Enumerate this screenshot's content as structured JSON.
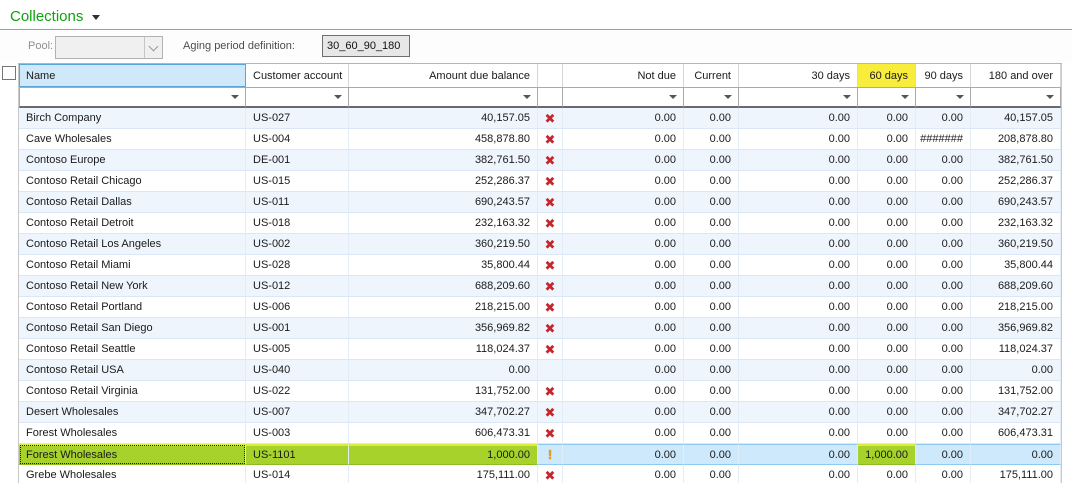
{
  "title": {
    "label": "Collections"
  },
  "toolbar": {
    "pool_label": "Pool:",
    "pool_value": "",
    "aging_label": "Aging period definition:",
    "aging_value": "30_60_90_180"
  },
  "colors": {
    "title_green": "#10a010",
    "selected_green": "#a6d22b",
    "selected_blue": "#cde9fb",
    "header_highlight_yellow": "#f8ec3d",
    "name_header_blue": "#cfe8fa",
    "alt_row_blue": "#eff5fc",
    "stop_icon_red": "#c5262c",
    "warning_icon_orange": "#ef9c0d"
  },
  "table": {
    "columns": [
      {
        "key": "name",
        "label": "Name",
        "align": "left"
      },
      {
        "key": "account",
        "label": "Customer account",
        "align": "left"
      },
      {
        "key": "amount",
        "label": "Amount due balance",
        "align": "right"
      },
      {
        "key": "icon",
        "label": "",
        "align": "center"
      },
      {
        "key": "not_due",
        "label": "Not due",
        "align": "right"
      },
      {
        "key": "current",
        "label": "Current",
        "align": "right"
      },
      {
        "key": "d30",
        "label": "30 days",
        "align": "right"
      },
      {
        "key": "d60",
        "label": "60 days",
        "align": "right",
        "highlight": true
      },
      {
        "key": "d90",
        "label": "90 days",
        "align": "right"
      },
      {
        "key": "d180",
        "label": "180 and over",
        "align": "right"
      }
    ],
    "rows": [
      {
        "name": "Birch Company",
        "account": "US-027",
        "amount": "40,157.05",
        "icon": "stop-icon",
        "not_due": "0.00",
        "current": "0.00",
        "d30": "0.00",
        "d60": "0.00",
        "d90": "0.00",
        "d180": "40,157.05"
      },
      {
        "name": "Cave Wholesales",
        "account": "US-004",
        "amount": "458,878.80",
        "icon": "stop-icon",
        "not_due": "0.00",
        "current": "0.00",
        "d30": "0.00",
        "d60": "0.00",
        "d90": "#######",
        "d180": "208,878.80"
      },
      {
        "name": "Contoso Europe",
        "account": "DE-001",
        "amount": "382,761.50",
        "icon": "stop-icon",
        "not_due": "0.00",
        "current": "0.00",
        "d30": "0.00",
        "d60": "0.00",
        "d90": "0.00",
        "d180": "382,761.50"
      },
      {
        "name": "Contoso Retail Chicago",
        "account": "US-015",
        "amount": "252,286.37",
        "icon": "stop-icon",
        "not_due": "0.00",
        "current": "0.00",
        "d30": "0.00",
        "d60": "0.00",
        "d90": "0.00",
        "d180": "252,286.37"
      },
      {
        "name": "Contoso Retail Dallas",
        "account": "US-011",
        "amount": "690,243.57",
        "icon": "stop-icon",
        "not_due": "0.00",
        "current": "0.00",
        "d30": "0.00",
        "d60": "0.00",
        "d90": "0.00",
        "d180": "690,243.57"
      },
      {
        "name": "Contoso Retail Detroit",
        "account": "US-018",
        "amount": "232,163.32",
        "icon": "stop-icon",
        "not_due": "0.00",
        "current": "0.00",
        "d30": "0.00",
        "d60": "0.00",
        "d90": "0.00",
        "d180": "232,163.32"
      },
      {
        "name": "Contoso Retail Los Angeles",
        "account": "US-002",
        "amount": "360,219.50",
        "icon": "stop-icon",
        "not_due": "0.00",
        "current": "0.00",
        "d30": "0.00",
        "d60": "0.00",
        "d90": "0.00",
        "d180": "360,219.50"
      },
      {
        "name": "Contoso Retail Miami",
        "account": "US-028",
        "amount": "35,800.44",
        "icon": "stop-icon",
        "not_due": "0.00",
        "current": "0.00",
        "d30": "0.00",
        "d60": "0.00",
        "d90": "0.00",
        "d180": "35,800.44"
      },
      {
        "name": "Contoso Retail New York",
        "account": "US-012",
        "amount": "688,209.60",
        "icon": "stop-icon",
        "not_due": "0.00",
        "current": "0.00",
        "d30": "0.00",
        "d60": "0.00",
        "d90": "0.00",
        "d180": "688,209.60"
      },
      {
        "name": "Contoso Retail Portland",
        "account": "US-006",
        "amount": "218,215.00",
        "icon": "stop-icon",
        "not_due": "0.00",
        "current": "0.00",
        "d30": "0.00",
        "d60": "0.00",
        "d90": "0.00",
        "d180": "218,215.00"
      },
      {
        "name": "Contoso Retail San Diego",
        "account": "US-001",
        "amount": "356,969.82",
        "icon": "stop-icon",
        "not_due": "0.00",
        "current": "0.00",
        "d30": "0.00",
        "d60": "0.00",
        "d90": "0.00",
        "d180": "356,969.82"
      },
      {
        "name": "Contoso Retail Seattle",
        "account": "US-005",
        "amount": "118,024.37",
        "icon": "stop-icon",
        "not_due": "0.00",
        "current": "0.00",
        "d30": "0.00",
        "d60": "0.00",
        "d90": "0.00",
        "d180": "118,024.37"
      },
      {
        "name": "Contoso Retail USA",
        "account": "US-040",
        "amount": "0.00",
        "icon": "",
        "not_due": "0.00",
        "current": "0.00",
        "d30": "0.00",
        "d60": "0.00",
        "d90": "0.00",
        "d180": "0.00"
      },
      {
        "name": "Contoso Retail Virginia",
        "account": "US-022",
        "amount": "131,752.00",
        "icon": "stop-icon",
        "not_due": "0.00",
        "current": "0.00",
        "d30": "0.00",
        "d60": "0.00",
        "d90": "0.00",
        "d180": "131,752.00"
      },
      {
        "name": "Desert Wholesales",
        "account": "US-007",
        "amount": "347,702.27",
        "icon": "stop-icon",
        "not_due": "0.00",
        "current": "0.00",
        "d30": "0.00",
        "d60": "0.00",
        "d90": "0.00",
        "d180": "347,702.27"
      },
      {
        "name": "Forest Wholesales",
        "account": "US-003",
        "amount": "606,473.31",
        "icon": "stop-icon",
        "not_due": "0.00",
        "current": "0.00",
        "d30": "0.00",
        "d60": "0.00",
        "d90": "0.00",
        "d180": "606,473.31"
      },
      {
        "name": "Forest Wholesales",
        "account": "US-1101",
        "amount": "1,000.00",
        "icon": "warning-icon",
        "not_due": "0.00",
        "current": "0.00",
        "d30": "0.00",
        "d60": "1,000.00",
        "d90": "0.00",
        "d180": "0.00",
        "selected": true
      },
      {
        "name": "Grebe Wholesales",
        "account": "US-014",
        "amount": "175,111.00",
        "icon": "stop-icon",
        "not_due": "0.00",
        "current": "0.00",
        "d30": "0.00",
        "d60": "0.00",
        "d90": "0.00",
        "d180": "175,111.00"
      }
    ]
  }
}
